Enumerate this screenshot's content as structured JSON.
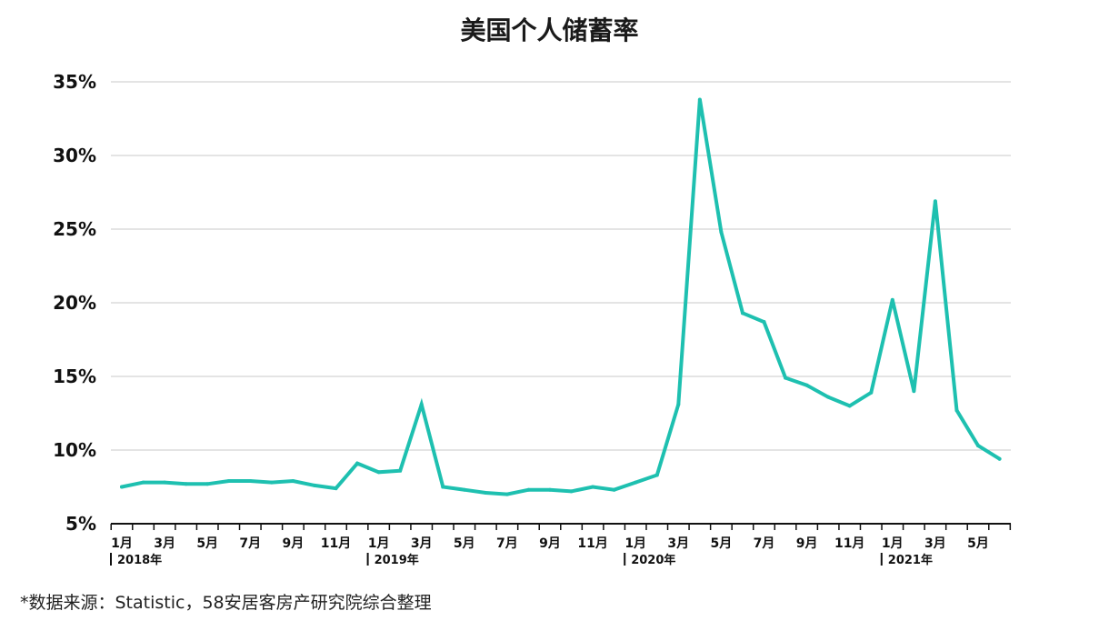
{
  "chart_data": {
    "type": "line",
    "title": "美国个人储蓄率",
    "xlabel": "",
    "ylabel": "",
    "ylim": [
      5,
      35
    ],
    "y_ticks": [
      "5%",
      "10%",
      "15%",
      "20%",
      "25%",
      "30%",
      "35%"
    ],
    "y_tick_values": [
      5,
      10,
      15,
      20,
      25,
      30,
      35
    ],
    "grid": true,
    "legend": "none",
    "line_color": "#1ec0b0",
    "x_months": [
      "2018-01",
      "2018-02",
      "2018-03",
      "2018-04",
      "2018-05",
      "2018-06",
      "2018-07",
      "2018-08",
      "2018-09",
      "2018-10",
      "2018-11",
      "2018-12",
      "2019-01",
      "2019-02",
      "2019-03",
      "2019-04",
      "2019-05",
      "2019-06",
      "2019-07",
      "2019-08",
      "2019-09",
      "2019-10",
      "2019-11",
      "2019-12",
      "2020-01",
      "2020-02",
      "2020-03",
      "2020-04",
      "2020-05",
      "2020-06",
      "2020-07",
      "2020-08",
      "2020-09",
      "2020-10",
      "2020-11",
      "2020-12",
      "2021-01",
      "2021-02",
      "2021-03",
      "2021-04",
      "2021-05",
      "2021-06"
    ],
    "values": [
      7.5,
      7.8,
      7.8,
      7.7,
      7.7,
      7.9,
      7.9,
      7.8,
      7.9,
      7.6,
      7.4,
      9.1,
      8.5,
      8.6,
      13.1,
      7.5,
      7.3,
      7.1,
      7.0,
      7.3,
      7.3,
      7.2,
      7.5,
      7.3,
      7.8,
      8.3,
      13.1,
      33.8,
      24.8,
      19.3,
      18.7,
      14.9,
      14.4,
      13.6,
      13.0,
      13.9,
      20.2,
      14.0,
      26.9,
      12.7,
      10.3,
      9.4
    ],
    "tick_labels": [
      {
        "index": 0,
        "label": "1月"
      },
      {
        "index": 2,
        "label": "3月"
      },
      {
        "index": 4,
        "label": "5月"
      },
      {
        "index": 6,
        "label": "7月"
      },
      {
        "index": 8,
        "label": "9月"
      },
      {
        "index": 10,
        "label": "11月"
      },
      {
        "index": 12,
        "label": "1月"
      },
      {
        "index": 14,
        "label": "3月"
      },
      {
        "index": 16,
        "label": "5月"
      },
      {
        "index": 18,
        "label": "7月"
      },
      {
        "index": 20,
        "label": "9月"
      },
      {
        "index": 22,
        "label": "11月"
      },
      {
        "index": 24,
        "label": "1月"
      },
      {
        "index": 26,
        "label": "3月"
      },
      {
        "index": 28,
        "label": "5月"
      },
      {
        "index": 30,
        "label": "7月"
      },
      {
        "index": 32,
        "label": "9月"
      },
      {
        "index": 34,
        "label": "11月"
      },
      {
        "index": 36,
        "label": "1月"
      },
      {
        "index": 38,
        "label": "3月"
      },
      {
        "index": 40,
        "label": "5月"
      }
    ],
    "year_labels": [
      {
        "index": 0,
        "label": "2018年"
      },
      {
        "index": 12,
        "label": "2019年"
      },
      {
        "index": 24,
        "label": "2020年"
      },
      {
        "index": 36,
        "label": "2021年"
      }
    ]
  },
  "footer": {
    "source": "*数据来源：Statistic，58安居客房产研究院综合整理"
  }
}
